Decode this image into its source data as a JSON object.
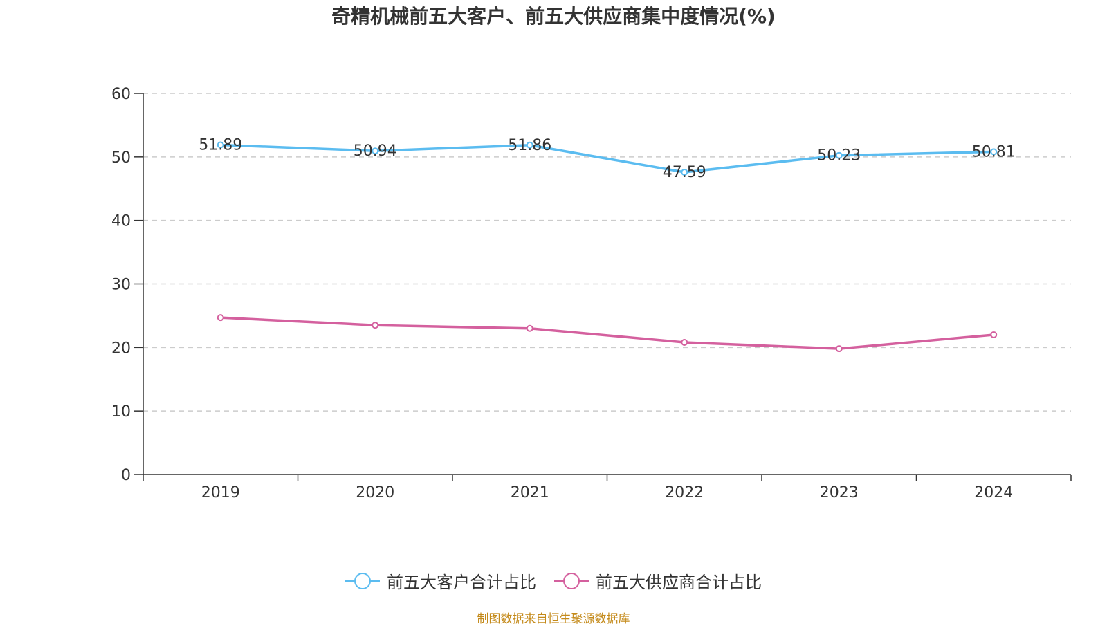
{
  "chart_data": {
    "type": "line",
    "title": "奇精机械前五大客户、前五大供应商集中度情况(%)",
    "categories": [
      "2019",
      "2020",
      "2021",
      "2022",
      "2023",
      "2024"
    ],
    "series": [
      {
        "name": "前五大客户合计占比",
        "color": "#5bbcf0",
        "values": [
          51.89,
          50.94,
          51.86,
          47.59,
          50.23,
          50.81
        ],
        "show_labels": true
      },
      {
        "name": "前五大供应商合计占比",
        "color": "#d4609e",
        "values": [
          24.7,
          23.5,
          23.0,
          20.8,
          19.8,
          22.0
        ],
        "show_labels": false
      }
    ],
    "yticks": [
      "0",
      "10",
      "20",
      "30",
      "40",
      "50",
      "60"
    ],
    "ylim": [
      0,
      60
    ],
    "grid": true,
    "legend_position": "bottom-center"
  },
  "source_text": "制图数据来自恒生聚源数据库"
}
